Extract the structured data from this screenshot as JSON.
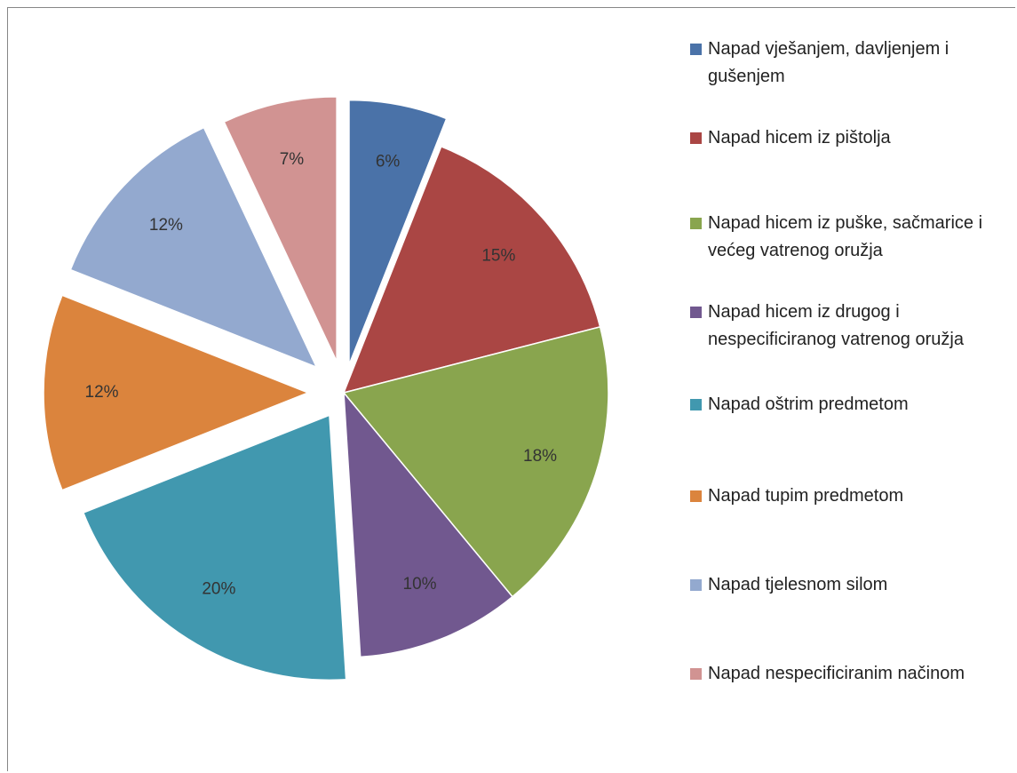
{
  "chart_data": {
    "type": "pie",
    "categories": [
      "Napad vješanjem, davljenjem i gušenjem",
      "Napad hicem iz pištolja",
      "Napad hicem iz puške, sačmarice i većeg vatrenog oružja",
      "Napad hicem iz drugog i nespecificiranog vatrenog oružja",
      "Napad oštrim predmetom",
      "Napad tupim predmetom",
      "Napad tjelesnom silom",
      "Napad nespecificiranim načinom"
    ],
    "values": [
      6,
      15,
      18,
      10,
      20,
      12,
      12,
      7
    ],
    "value_labels": [
      "6%",
      "15%",
      "18%",
      "10%",
      "20%",
      "12%",
      "12%",
      "7%"
    ],
    "colors": [
      "#4a72a8",
      "#aa4644",
      "#89a54e",
      "#71588f",
      "#4198af",
      "#db843d",
      "#93a9cf",
      "#d19392"
    ],
    "legend": "right"
  }
}
